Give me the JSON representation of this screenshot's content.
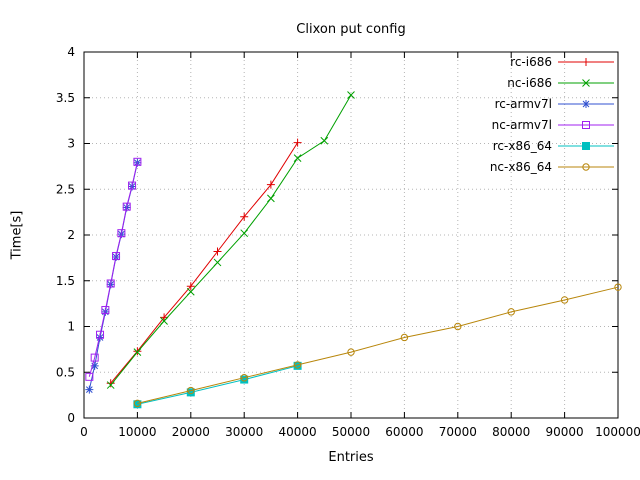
{
  "chart_data": {
    "type": "line",
    "title": "Clixon put config",
    "xlabel": "Entries",
    "ylabel": "Time[s]",
    "xlim": [
      0,
      100000
    ],
    "ylim": [
      0,
      4
    ],
    "xticks": [
      0,
      10000,
      20000,
      30000,
      40000,
      50000,
      60000,
      70000,
      80000,
      90000,
      100000
    ],
    "yticks": [
      0,
      0.5,
      1,
      1.5,
      2,
      2.5,
      3,
      3.5,
      4
    ],
    "grid": true,
    "grid_color": "#b5b5b5",
    "border_color": "#000000",
    "background": "#ffffff",
    "legend_position": "top-right-inside",
    "series": [
      {
        "name": "rc-i686",
        "color": "#e00000",
        "marker": "plus",
        "points": [
          [
            5000,
            0.38
          ],
          [
            10000,
            0.73
          ],
          [
            15000,
            1.1
          ],
          [
            20000,
            1.44
          ],
          [
            25000,
            1.82
          ],
          [
            30000,
            2.2
          ],
          [
            35000,
            2.55
          ],
          [
            40000,
            3.01
          ]
        ]
      },
      {
        "name": "nc-i686",
        "color": "#00a000",
        "marker": "cross",
        "points": [
          [
            5000,
            0.36
          ],
          [
            10000,
            0.72
          ],
          [
            15000,
            1.06
          ],
          [
            20000,
            1.38
          ],
          [
            25000,
            1.7
          ],
          [
            30000,
            2.02
          ],
          [
            35000,
            2.4
          ],
          [
            40000,
            2.84
          ],
          [
            45000,
            3.03
          ],
          [
            50000,
            3.53
          ]
        ]
      },
      {
        "name": "rc-armv7l",
        "color": "#3050d0",
        "marker": "asterisk",
        "points": [
          [
            1000,
            0.31
          ],
          [
            2000,
            0.57
          ],
          [
            3000,
            0.88
          ],
          [
            4000,
            1.16
          ],
          [
            5000,
            1.46
          ],
          [
            6000,
            1.76
          ],
          [
            7000,
            2.01
          ],
          [
            8000,
            2.3
          ],
          [
            9000,
            2.53
          ],
          [
            10000,
            2.79
          ]
        ]
      },
      {
        "name": "nc-armv7l",
        "color": "#a020f0",
        "marker": "square-open",
        "points": [
          [
            1000,
            0.45
          ],
          [
            2000,
            0.66
          ],
          [
            3000,
            0.91
          ],
          [
            4000,
            1.18
          ],
          [
            5000,
            1.47
          ],
          [
            6000,
            1.77
          ],
          [
            7000,
            2.02
          ],
          [
            8000,
            2.31
          ],
          [
            9000,
            2.54
          ],
          [
            10000,
            2.8
          ]
        ]
      },
      {
        "name": "rc-x86_64",
        "color": "#00c0c0",
        "marker": "square-filled",
        "points": [
          [
            10000,
            0.15
          ],
          [
            20000,
            0.28
          ],
          [
            30000,
            0.42
          ],
          [
            40000,
            0.57
          ]
        ]
      },
      {
        "name": "nc-x86_64",
        "color": "#b8860b",
        "marker": "circle-open",
        "points": [
          [
            10000,
            0.16
          ],
          [
            20000,
            0.3
          ],
          [
            30000,
            0.44
          ],
          [
            40000,
            0.58
          ],
          [
            50000,
            0.72
          ],
          [
            60000,
            0.88
          ],
          [
            70000,
            1.0
          ],
          [
            80000,
            1.16
          ],
          [
            90000,
            1.29
          ],
          [
            100000,
            1.43
          ]
        ]
      }
    ]
  }
}
